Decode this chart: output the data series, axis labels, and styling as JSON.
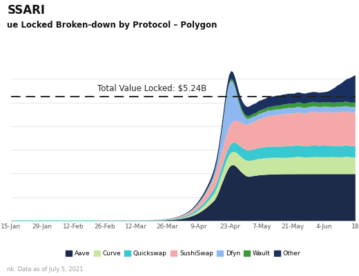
{
  "title_line1": "SSARI",
  "title_line2": "ue Locked Broken-down by Protocol – Polygon",
  "annotation": "Total Value Locked: $5.24B",
  "footer": "nk. Data as of July 5, 2021.",
  "colors": {
    "Aave": "#1c2b4a",
    "Curve": "#c8e6a0",
    "Quickswap": "#38c8d0",
    "SushiSwap": "#f5a8a8",
    "Dfyn": "#90b8f0",
    "Wault": "#3a9a3a",
    "Other": "#1a3060"
  },
  "legend_order": [
    "Aave",
    "Curve",
    "Quickswap",
    "SushiSwap",
    "Dfyn",
    "Wault",
    "Other"
  ],
  "x_ticks": [
    "15-Jan",
    "29-Jan",
    "12-Feb",
    "26-Feb",
    "12-Mar",
    "26-Mar",
    "9-Apr",
    "23-Apr",
    "7-May",
    "21-May",
    "4-Jun",
    "18"
  ],
  "ylim": [
    0,
    7.0
  ],
  "dashed_line_y": 5.24,
  "background_color": "#ffffff",
  "grid_color": "#e8e8e8"
}
